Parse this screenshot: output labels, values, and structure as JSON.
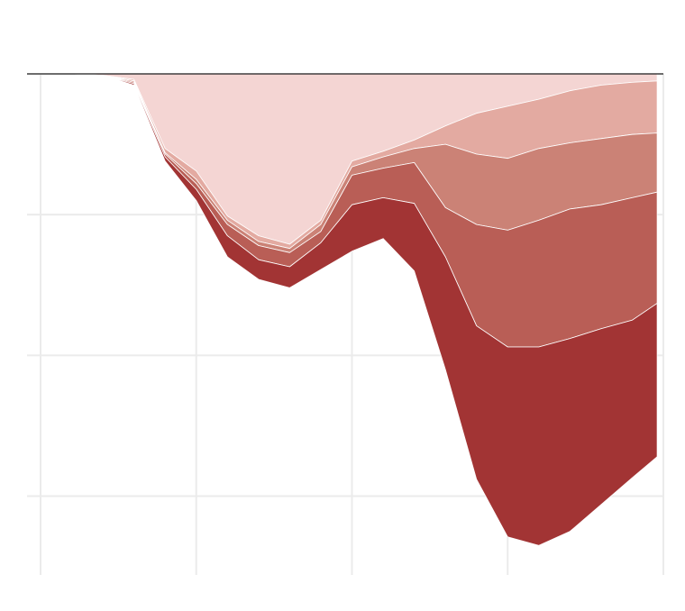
{
  "chart_data": {
    "type": "area",
    "stacked": true,
    "grid": true,
    "x": [
      0,
      0.2,
      0.4,
      0.6,
      0.8,
      1.0,
      1.2,
      1.4,
      1.6,
      1.8,
      2.0,
      2.2,
      2.4,
      2.6,
      2.8,
      3.0,
      3.2,
      3.4,
      3.6,
      3.8,
      3.96
    ],
    "xlim": [
      0,
      4
    ],
    "xticks": [
      0,
      1,
      2,
      3,
      4
    ],
    "ylim": [
      -3.56,
      0
    ],
    "yticks": [
      0,
      -1,
      -2,
      -3
    ],
    "series": [
      {
        "color": "#f4d5d3",
        "values": [
          0,
          0,
          -0.01,
          -0.04,
          -0.53,
          -0.69,
          -1.01,
          -1.15,
          -1.21,
          -1.04,
          -0.62,
          -0.55,
          -0.47,
          -0.37,
          -0.28,
          -0.23,
          -0.18,
          -0.12,
          -0.08,
          -0.06,
          -0.05
        ]
      },
      {
        "color": "#e3aaa1",
        "values": [
          0,
          0,
          0,
          -0.01,
          -0.03,
          -0.06,
          -0.03,
          -0.04,
          -0.03,
          -0.03,
          -0.04,
          -0.04,
          -0.06,
          -0.13,
          -0.29,
          -0.37,
          -0.35,
          -0.37,
          -0.38,
          -0.37,
          -0.37
        ]
      },
      {
        "color": "#cb8276",
        "values": [
          0,
          0,
          0,
          -0.01,
          -0.01,
          -0.03,
          -0.03,
          -0.03,
          -0.03,
          -0.05,
          -0.06,
          -0.08,
          -0.1,
          -0.45,
          -0.5,
          -0.51,
          -0.51,
          -0.47,
          -0.47,
          -0.45,
          -0.42
        ]
      },
      {
        "color": "#b95e56",
        "values": [
          0,
          0,
          0,
          -0.01,
          -0.02,
          -0.04,
          -0.08,
          -0.1,
          -0.1,
          -0.08,
          -0.21,
          -0.21,
          -0.29,
          -0.35,
          -0.72,
          -0.83,
          -0.9,
          -0.92,
          -0.88,
          -0.87,
          -0.79
        ]
      },
      {
        "color": "#a23434",
        "values": [
          0,
          0,
          0,
          -0.01,
          -0.03,
          -0.08,
          -0.15,
          -0.14,
          -0.15,
          -0.19,
          -0.33,
          -0.29,
          -0.48,
          -0.8,
          -1.09,
          -1.35,
          -1.41,
          -1.37,
          -1.25,
          -1.12,
          -1.09
        ]
      }
    ]
  }
}
